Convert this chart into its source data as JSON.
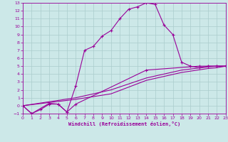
{
  "bg_color": "#cce8e8",
  "line_color": "#990099",
  "grid_color": "#aacccc",
  "xlabel": "Windchill (Refroidissement éolien,°C)",
  "xlim": [
    0,
    23
  ],
  "ylim": [
    -1,
    13
  ],
  "xticks": [
    0,
    1,
    2,
    3,
    4,
    5,
    6,
    7,
    8,
    9,
    10,
    11,
    12,
    13,
    14,
    15,
    16,
    17,
    18,
    19,
    20,
    21,
    22,
    23
  ],
  "yticks": [
    -1,
    0,
    1,
    2,
    3,
    4,
    5,
    6,
    7,
    8,
    9,
    10,
    11,
    12,
    13
  ],
  "series1": [
    [
      0,
      0
    ],
    [
      1,
      -1
    ],
    [
      2,
      -0.5
    ],
    [
      3,
      0.2
    ],
    [
      4,
      0.2
    ],
    [
      5,
      -0.8
    ],
    [
      6,
      2.5
    ],
    [
      7,
      7.0
    ],
    [
      8,
      7.5
    ],
    [
      9,
      8.8
    ],
    [
      10,
      9.5
    ],
    [
      11,
      11.0
    ],
    [
      12,
      12.2
    ],
    [
      13,
      12.5
    ],
    [
      14,
      13.0
    ],
    [
      15,
      12.8
    ],
    [
      16,
      10.2
    ],
    [
      17,
      9.0
    ],
    [
      18,
      5.5
    ],
    [
      19,
      5.0
    ],
    [
      20,
      4.8
    ],
    [
      21,
      5.0
    ],
    [
      22,
      5.0
    ],
    [
      23,
      5.0
    ]
  ],
  "series2": [
    [
      0,
      0
    ],
    [
      1,
      -1
    ],
    [
      3,
      0.3
    ],
    [
      4,
      0.2
    ],
    [
      5,
      -0.8
    ],
    [
      6,
      0.2
    ],
    [
      14,
      4.5
    ],
    [
      20,
      5.0
    ],
    [
      21,
      5.0
    ],
    [
      22,
      5.0
    ],
    [
      23,
      5.0
    ]
  ],
  "series3": [
    [
      0,
      0
    ],
    [
      6,
      0.8
    ],
    [
      10,
      1.5
    ],
    [
      14,
      3.2
    ],
    [
      18,
      4.2
    ],
    [
      21,
      4.7
    ],
    [
      22,
      4.8
    ],
    [
      23,
      5.0
    ]
  ],
  "series4": [
    [
      0,
      0
    ],
    [
      6,
      1.0
    ],
    [
      10,
      2.0
    ],
    [
      14,
      3.5
    ],
    [
      18,
      4.5
    ],
    [
      21,
      4.9
    ],
    [
      22,
      5.0
    ],
    [
      23,
      5.0
    ]
  ]
}
